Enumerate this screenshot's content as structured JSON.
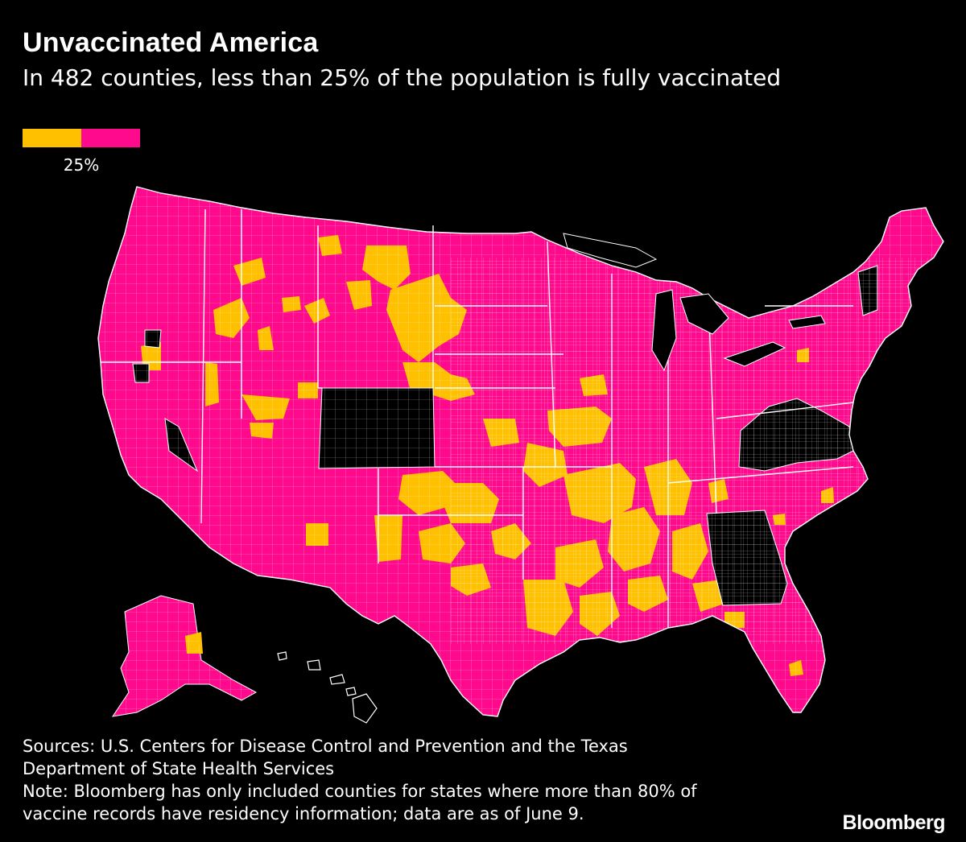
{
  "title": "Unvaccinated America",
  "subtitle": "In 482 counties, less than 25% of the population is fully vaccinated",
  "legend": {
    "threshold_label": "25%",
    "low_color": "#ffc000",
    "high_color": "#ff0a8c",
    "no_data_color": "#000000"
  },
  "colors": {
    "background": "#000000",
    "county_border": "#ffffff",
    "state_border": "#ffffff"
  },
  "map_data": {
    "type": "choropleth",
    "geography": "U.S. counties",
    "threshold_percent": 25,
    "counties_below_threshold": 482,
    "no_data_states": [
      "Colorado",
      "Georgia",
      "West Virginia",
      "Virginia",
      "Vermont"
    ]
  },
  "footer": {
    "sources_line1": "Sources: U.S. Centers for Disease Control and Prevention and the Texas",
    "sources_line2": "Department of State Health Services",
    "note_line1": "Note: Bloomberg has only included counties for states where more than 80% of",
    "note_line2": "vaccine records have residency information; data are as of June 9."
  },
  "brand": "Bloomberg"
}
